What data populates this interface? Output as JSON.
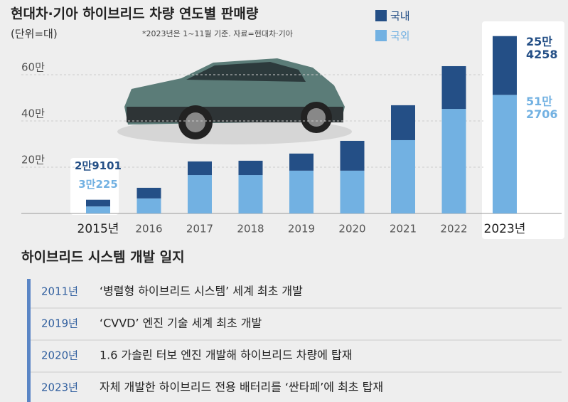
{
  "chart_data": {
    "type": "stacked-bar",
    "title": "현대차·기아 하이브리드 차량 연도별 판매량",
    "subtitle": "(단위=대)",
    "note": "*2023년은 1~11월 기준. 자료=현대차·기아",
    "categories": [
      "2015년",
      "2016",
      "2017",
      "2018",
      "2019",
      "2020",
      "2021",
      "2022",
      "2023년"
    ],
    "series": [
      {
        "name": "국외",
        "color": "#72b1e2",
        "values": [
          30225,
          65000,
          166000,
          166000,
          185000,
          185000,
          317000,
          452000,
          512706
        ],
        "value_labels": [
          "3만225",
          null,
          null,
          null,
          null,
          null,
          null,
          null,
          "51만\n2706"
        ]
      },
      {
        "name": "국내",
        "color": "#244f86",
        "values": [
          29101,
          46000,
          59000,
          62000,
          74000,
          129000,
          151000,
          185000,
          254258
        ],
        "value_labels": [
          "2만9101",
          null,
          null,
          null,
          null,
          null,
          null,
          null,
          "25만\n4258"
        ]
      }
    ],
    "ylim": [
      0,
      800000
    ],
    "yticks": [
      {
        "value": 200000,
        "label": "20만"
      },
      {
        "value": 400000,
        "label": "40만"
      },
      {
        "value": 600000,
        "label": "60만"
      }
    ],
    "grid": true
  },
  "timeline": {
    "title": "하이브리드 시스템 개발 일지",
    "entries": [
      {
        "year": "2011년",
        "text": "‘병렬형 하이브리드 시스템’ 세계 최초 개발"
      },
      {
        "year": "2019년",
        "text": "‘CVVD’ 엔진 기술 세계 최초 개발"
      },
      {
        "year": "2020년",
        "text": "1.6 가솔린 터보 엔진 개발해 하이브리드 차량에 탑재"
      },
      {
        "year": "2023년",
        "text": "자체 개발한 하이브리드 전용 배터리를 ‘싼타페’에 최초 탑재"
      }
    ]
  }
}
